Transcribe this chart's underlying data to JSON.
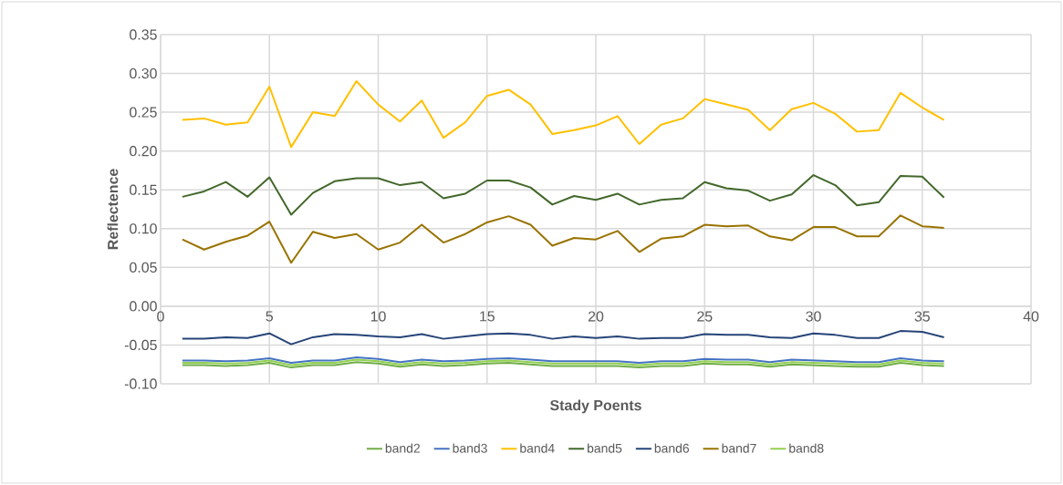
{
  "chart_data": {
    "type": "line",
    "xlabel": "Stady Poents",
    "ylabel": "Reflectence",
    "x": [
      1,
      2,
      3,
      4,
      5,
      6,
      7,
      8,
      9,
      10,
      11,
      12,
      13,
      14,
      15,
      16,
      17,
      18,
      19,
      20,
      21,
      22,
      23,
      24,
      25,
      26,
      27,
      28,
      29,
      30,
      31,
      32,
      33,
      34,
      35,
      36
    ],
    "xlim": [
      0,
      40
    ],
    "xticks": [
      0,
      5,
      10,
      15,
      20,
      25,
      30,
      35,
      40
    ],
    "ylim": [
      -0.1,
      0.35
    ],
    "yticks": [
      {
        "value": -0.1,
        "label": "-0.10"
      },
      {
        "value": -0.05,
        "label": "-0.05"
      },
      {
        "value": 0,
        "label": "0.00"
      },
      {
        "value": 0.05,
        "label": "0.05"
      },
      {
        "value": 0.1,
        "label": "0.10"
      },
      {
        "value": 0.15,
        "label": "0.15"
      },
      {
        "value": 0.2,
        "label": "0.20"
      },
      {
        "value": 0.25,
        "label": "0.25"
      },
      {
        "value": 0.3,
        "label": "0.30"
      },
      {
        "value": 0.35,
        "label": "0.35"
      }
    ],
    "grid": true,
    "legend": "bottom",
    "marker": "none",
    "line_style": "solid",
    "series": [
      {
        "name": "band2",
        "color": "#70ad47",
        "values": [
          -0.076,
          -0.076,
          -0.077,
          -0.076,
          -0.073,
          -0.079,
          -0.076,
          -0.076,
          -0.072,
          -0.074,
          -0.078,
          -0.075,
          -0.077,
          -0.076,
          -0.074,
          -0.073,
          -0.075,
          -0.077,
          -0.077,
          -0.077,
          -0.077,
          -0.079,
          -0.077,
          -0.077,
          -0.074,
          -0.075,
          -0.075,
          -0.078,
          -0.075,
          -0.076,
          -0.077,
          -0.078,
          -0.078,
          -0.073,
          -0.076,
          -0.077
        ]
      },
      {
        "name": "band3",
        "color": "#4472c4",
        "values": [
          -0.07,
          -0.07,
          -0.071,
          -0.07,
          -0.067,
          -0.073,
          -0.07,
          -0.07,
          -0.066,
          -0.068,
          -0.072,
          -0.069,
          -0.071,
          -0.07,
          -0.068,
          -0.067,
          -0.069,
          -0.071,
          -0.071,
          -0.071,
          -0.071,
          -0.073,
          -0.071,
          -0.071,
          -0.068,
          -0.069,
          -0.069,
          -0.072,
          -0.069,
          -0.07,
          -0.071,
          -0.072,
          -0.072,
          -0.067,
          -0.07,
          -0.071
        ]
      },
      {
        "name": "band4",
        "color": "#ffc000",
        "values": [
          0.24,
          0.242,
          0.234,
          0.237,
          0.283,
          0.205,
          0.25,
          0.245,
          0.29,
          0.26,
          0.238,
          0.265,
          0.217,
          0.237,
          0.271,
          0.279,
          0.26,
          0.222,
          0.227,
          0.233,
          0.245,
          0.209,
          0.234,
          0.242,
          0.267,
          0.26,
          0.253,
          0.227,
          0.254,
          0.262,
          0.248,
          0.225,
          0.227,
          0.275,
          0.256,
          0.24
        ]
      },
      {
        "name": "band5",
        "color": "#43682b",
        "values": [
          0.141,
          0.148,
          0.16,
          0.141,
          0.166,
          0.118,
          0.146,
          0.161,
          0.165,
          0.165,
          0.156,
          0.16,
          0.139,
          0.145,
          0.162,
          0.162,
          0.153,
          0.131,
          0.142,
          0.137,
          0.145,
          0.131,
          0.137,
          0.139,
          0.16,
          0.152,
          0.149,
          0.136,
          0.144,
          0.169,
          0.156,
          0.13,
          0.134,
          0.168,
          0.167,
          0.14
        ]
      },
      {
        "name": "band6",
        "color": "#264478",
        "values": [
          -0.042,
          -0.042,
          -0.04,
          -0.041,
          -0.035,
          -0.049,
          -0.04,
          -0.036,
          -0.037,
          -0.039,
          -0.04,
          -0.036,
          -0.042,
          -0.039,
          -0.036,
          -0.035,
          -0.037,
          -0.042,
          -0.039,
          -0.041,
          -0.039,
          -0.042,
          -0.041,
          -0.041,
          -0.036,
          -0.037,
          -0.037,
          -0.04,
          -0.041,
          -0.035,
          -0.037,
          -0.041,
          -0.041,
          -0.032,
          -0.033,
          -0.04
        ]
      },
      {
        "name": "band7",
        "color": "#997300",
        "values": [
          0.086,
          0.073,
          0.083,
          0.091,
          0.109,
          0.056,
          0.096,
          0.088,
          0.093,
          0.073,
          0.082,
          0.105,
          0.082,
          0.093,
          0.108,
          0.116,
          0.105,
          0.078,
          0.088,
          0.086,
          0.097,
          0.07,
          0.087,
          0.09,
          0.105,
          0.103,
          0.104,
          0.09,
          0.085,
          0.102,
          0.102,
          0.09,
          0.09,
          0.117,
          0.103,
          0.101
        ]
      },
      {
        "name": "band8",
        "color": "#92d050",
        "values": [
          -0.073,
          -0.073,
          -0.074,
          -0.073,
          -0.07,
          -0.076,
          -0.073,
          -0.073,
          -0.069,
          -0.071,
          -0.075,
          -0.072,
          -0.074,
          -0.073,
          -0.071,
          -0.07,
          -0.072,
          -0.074,
          -0.074,
          -0.074,
          -0.074,
          -0.076,
          -0.074,
          -0.074,
          -0.071,
          -0.072,
          -0.072,
          -0.075,
          -0.072,
          -0.073,
          -0.074,
          -0.075,
          -0.075,
          -0.07,
          -0.073,
          -0.074
        ]
      }
    ]
  }
}
